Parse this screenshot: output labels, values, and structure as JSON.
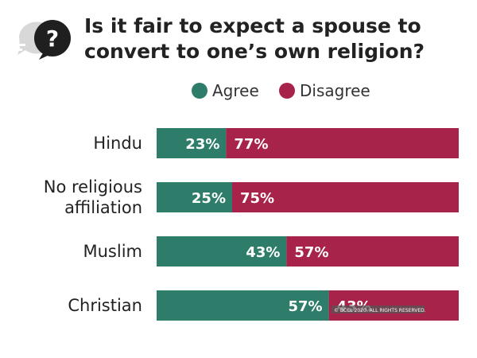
{
  "chart_data": {
    "type": "bar",
    "orientation": "horizontal",
    "stacked": true,
    "title": "Is it fair to expect a spouse to convert to one’s own religion?",
    "title_lines": [
      "Is it fair to expect a spouse to",
      "convert to one’s own religion?"
    ],
    "icon": "question-bubble-icon",
    "categories": [
      "Hindu",
      "No religious affiliation",
      "Muslim",
      "Christian"
    ],
    "category_lines": [
      [
        "Hindu"
      ],
      [
        "No religious",
        "affiliation"
      ],
      [
        "Muslim"
      ],
      [
        "Christian"
      ]
    ],
    "series": [
      {
        "name": "Agree",
        "color": "#2e7d6b",
        "values": [
          23,
          25,
          43,
          57
        ]
      },
      {
        "name": "Disagree",
        "color": "#a8234a",
        "values": [
          77,
          75,
          57,
          43
        ]
      }
    ],
    "value_suffix": "%",
    "xlim": [
      0,
      100
    ],
    "legend_position": "top",
    "grid": false,
    "copyright": "© BCCL 2020. ALL RIGHTS RESERVED."
  }
}
